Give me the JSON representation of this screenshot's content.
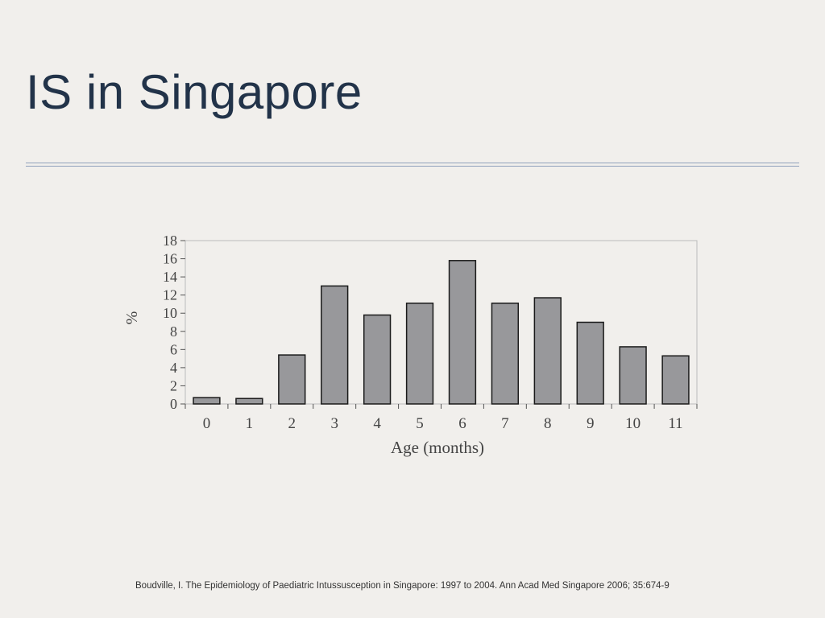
{
  "slide": {
    "title": "IS in Singapore",
    "citation": "Boudville, I. The Epidemiology of Paediatric Intussusception in Singapore: 1997 to 2004. Ann Acad Med Singapore 2006; 35:674-9"
  },
  "colors": {
    "background": "#f1efec",
    "title": "#223349",
    "rule": "#8fa0bb",
    "bar_fill": "#98989b",
    "bar_stroke": "#1a1a1a"
  },
  "chart_data": {
    "type": "bar",
    "categories": [
      "0",
      "1",
      "2",
      "3",
      "4",
      "5",
      "6",
      "7",
      "8",
      "9",
      "10",
      "11"
    ],
    "values": [
      0.7,
      0.6,
      5.4,
      13.0,
      9.8,
      11.1,
      15.8,
      11.1,
      11.7,
      9.0,
      6.3,
      5.3
    ],
    "xlabel": "Age (months)",
    "ylabel": "%",
    "ylim": [
      0,
      18
    ],
    "yticks": [
      "0",
      "2",
      "4",
      "6",
      "8",
      "10",
      "12",
      "14",
      "16",
      "18"
    ],
    "grid": false,
    "legend": "none"
  }
}
